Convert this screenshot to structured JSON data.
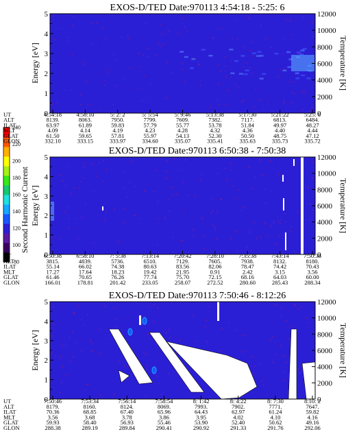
{
  "colors": {
    "background": "#2b1fd6",
    "speckle": "#ff1a1a",
    "gap": "#ffffff",
    "outline": "#000000"
  },
  "colorbar": {
    "label": "Second Harmonic Current",
    "ticks": [
      "80",
      "100",
      "120",
      "140",
      "160",
      "180",
      "200",
      "220",
      "240"
    ],
    "colors": [
      "#000000",
      "#3a0060",
      "#5a1aa0",
      "#2b1fd6",
      "#1a58ff",
      "#17a8ff",
      "#20e0e0",
      "#18c870",
      "#38e81a",
      "#a8f018",
      "#ffff00",
      "#ffb000",
      "#ff5a00",
      "#ff0000"
    ]
  },
  "chart_data": [
    {
      "type": "heatmap",
      "title": "EXOS-D/TED   Date:970113  4:54:18 - 5:25: 6",
      "ylabel": "Energy [eV]",
      "y2label": "Temperature [K]",
      "ylim": [
        0,
        5
      ],
      "y2lim": [
        0,
        12000
      ],
      "yticks": [
        "0",
        "1",
        "2",
        "3",
        "4",
        "5"
      ],
      "y2ticks": [
        "0",
        "2000",
        "4000",
        "6000",
        "8000",
        "10000",
        "12000"
      ],
      "ephemeris": {
        "labels": [
          "UT",
          "ALT",
          "ILAT",
          "MLT",
          "GLAT",
          "GLON"
        ],
        "columns": [
          [
            "4:54:18",
            "8139.",
            "63.97",
            "4.09",
            "61.50",
            "332.10"
          ],
          [
            "4:58:10",
            "8063.",
            "61.89",
            "4.14",
            "59.65",
            "333.15"
          ],
          [
            "5: 2: 2",
            "7950.",
            "59.83",
            "4.19",
            "57.81",
            "333.97"
          ],
          [
            "5: 5:54",
            "7799.",
            "57.79",
            "4.23",
            "55.97",
            "334.60"
          ],
          [
            "5: 9:46",
            "7609.",
            "55.77",
            "4.28",
            "54.13",
            "335.07"
          ],
          [
            "5:13:38",
            "7382.",
            "53.78",
            "4.32",
            "52.30",
            "335.41"
          ],
          [
            "5:17:30",
            "7117.",
            "51.84",
            "4.36",
            "50.50",
            "335.63"
          ],
          [
            "5:21:22",
            "6813.",
            "49.97",
            "4.40",
            "48.75",
            "335.73"
          ],
          [
            "5:25: 6",
            "6484.",
            "48.27",
            "4.44",
            "47.12",
            "335.72"
          ]
        ]
      }
    },
    {
      "type": "heatmap",
      "title": "EXOS-D/TED   Date:970113  6:50:38 - 7:50:38",
      "ylabel": "Energy [eV]",
      "y2label": "Temperature [K]",
      "ylim": [
        0,
        5
      ],
      "y2lim": [
        0,
        12000
      ],
      "yticks": [
        "0",
        "1",
        "2",
        "3",
        "4",
        "5"
      ],
      "y2ticks": [
        "0",
        "2000",
        "4000",
        "6000",
        "8000",
        "10000",
        "12000"
      ],
      "ephemeris": {
        "labels": [
          "UT",
          "ALT",
          "ILAT",
          "MLT",
          "GLAT",
          "GLON"
        ],
        "columns": [
          [
            "6:50:38",
            "3815.",
            "55.14",
            "17.27",
            "61.46",
            "166.01"
          ],
          [
            "6:58:10",
            "4839.",
            "66.02",
            "17.64",
            "70.65",
            "178.81"
          ],
          [
            "7: 5:38",
            "5736.",
            "74.38",
            "18.23",
            "76.26",
            "201.42"
          ],
          [
            "7:13:14",
            "6510.",
            "80.63",
            "19.42",
            "77.74",
            "233.05"
          ],
          [
            "7:20:42",
            "7129.",
            "83.56",
            "21.95",
            "75.70",
            "258.07"
          ],
          [
            "7:28:10",
            "7605.",
            "82.06",
            "0.91",
            "72.15",
            "272.52"
          ],
          [
            "7:35:38",
            "7938.",
            "78.47",
            "2.42",
            "68.16",
            "280.60"
          ],
          [
            "7:43:14",
            "8132.",
            "74.42",
            "3.15",
            "64.03",
            "285.43"
          ],
          [
            "7:50:38",
            "8180.",
            "70.43",
            "3.56",
            "60.00",
            "288.34"
          ]
        ]
      }
    },
    {
      "type": "heatmap",
      "title": "EXOS-D/TED   Date:970113  7:50:46 - 8:12:26",
      "ylabel": "Energy [eV]",
      "y2label": "Temperature [K]",
      "ylim": [
        0,
        5
      ],
      "y2lim": [
        0,
        12000
      ],
      "yticks": [
        "0",
        "1",
        "2",
        "3",
        "4",
        "5"
      ],
      "y2ticks": [
        "0",
        "2000",
        "4000",
        "6000",
        "8000",
        "10000",
        "12000"
      ],
      "ephemeris": {
        "labels": [
          "UT",
          "ALT",
          "ILAT",
          "MLT",
          "GLAT",
          "GLON"
        ],
        "columns": [
          [
            "7:50:46",
            "8179.",
            "70.36",
            "3.56",
            "59.93",
            "288.38"
          ],
          [
            "7:53:34",
            "8160.",
            "68.85",
            "3.68",
            "58.40",
            "289.19"
          ],
          [
            "7:56:14",
            "8124.",
            "67.40",
            "3.78",
            "56.93",
            "289.84"
          ],
          [
            "7:58:54",
            "8069.",
            "65.96",
            "3.86",
            "55.46",
            "290.41"
          ],
          [
            "8: 1:42",
            "7993.",
            "64.43",
            "3.95",
            "53.90",
            "290.92"
          ],
          [
            "8: 4:22",
            "7902.",
            "62.97",
            "4.02",
            "52.40",
            "291.33"
          ],
          [
            "8: 7:30",
            "7771.",
            "61.24",
            "4.10",
            "50.62",
            "291.76"
          ],
          [
            "8:10: 2",
            "7647.",
            "59.82",
            "4.16",
            "49.16",
            "292.06"
          ]
        ]
      }
    }
  ]
}
